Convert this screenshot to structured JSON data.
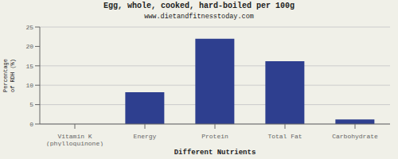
{
  "chart_data": {
    "type": "bar",
    "title": "Egg, whole, cooked, hard-boiled per 100g",
    "subtitle": "www.dietandfitnesstoday.com",
    "xlabel": "Different Nutrients",
    "ylabel": "Percentage\nof RDH (%)",
    "categories": [
      "Vitamin K (phylloquinone)",
      "Energy",
      "Protein",
      "Total Fat",
      "Carbohydrate"
    ],
    "values": [
      0,
      8.2,
      22,
      16.2,
      1.2
    ],
    "color": "#2e3f8f",
    "ylim": [
      0,
      25
    ],
    "yticks": [
      0,
      5,
      10,
      15,
      20,
      25
    ],
    "grid": true
  }
}
